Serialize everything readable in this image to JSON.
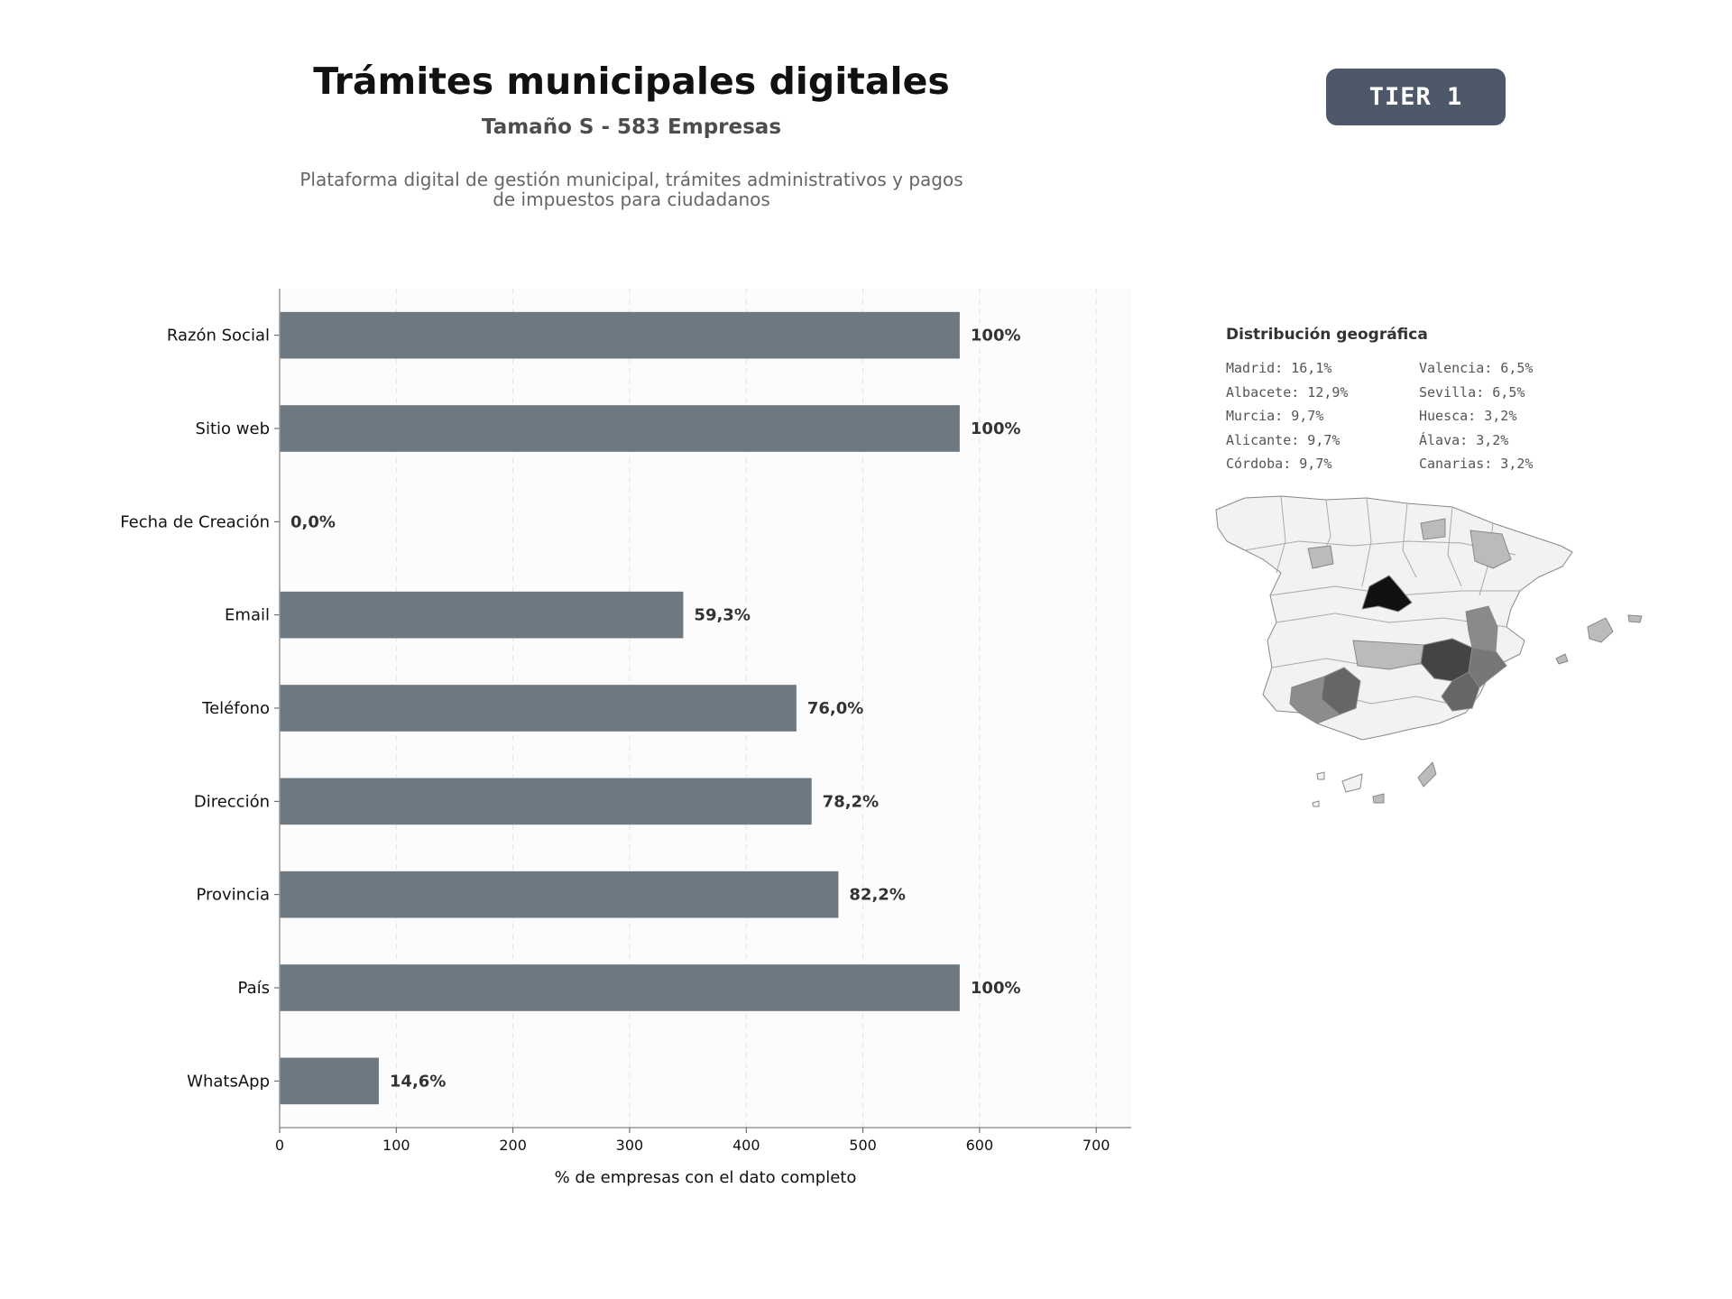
{
  "header": {
    "title": "Trámites municipales digitales",
    "subtitle": "Tamaño S - 583 Empresas",
    "description": "Plataforma digital de gestión municipal, trámites administrativos y pagos de impuestos para ciudadanos",
    "tier_label": "TIER 1",
    "tier_color": "#4d5968"
  },
  "chart_data": {
    "type": "bar",
    "orientation": "horizontal",
    "categories": [
      "Razón Social",
      "Sitio web",
      "Fecha de Creación",
      "Email",
      "Teléfono",
      "Dirección",
      "Provincia",
      "País",
      "WhatsApp"
    ],
    "values": [
      583,
      583,
      0,
      346,
      443,
      456,
      479,
      583,
      85
    ],
    "data_labels": [
      "100%",
      "100%",
      "0,0%",
      "59,3%",
      "76,0%",
      "78,2%",
      "82,2%",
      "100%",
      "14,6%"
    ],
    "xlabel": "% de empresas con el dato completo",
    "ylabel": "",
    "xlim": [
      0,
      730
    ],
    "xticks": [
      0,
      100,
      200,
      300,
      400,
      500,
      600,
      700
    ],
    "grid": "vertical dashed",
    "bar_color": "#6e7880"
  },
  "geo": {
    "title": "Distribución geográfica",
    "items": [
      "Madrid: 16,1%",
      "Valencia: 6,5%",
      "Albacete: 12,9%",
      "Sevilla: 6,5%",
      "Murcia: 9,7%",
      "Huesca: 3,2%",
      "Alicante: 9,7%",
      "Álava: 3,2%",
      "Córdoba: 9,7%",
      "Canarias: 3,2%"
    ]
  }
}
